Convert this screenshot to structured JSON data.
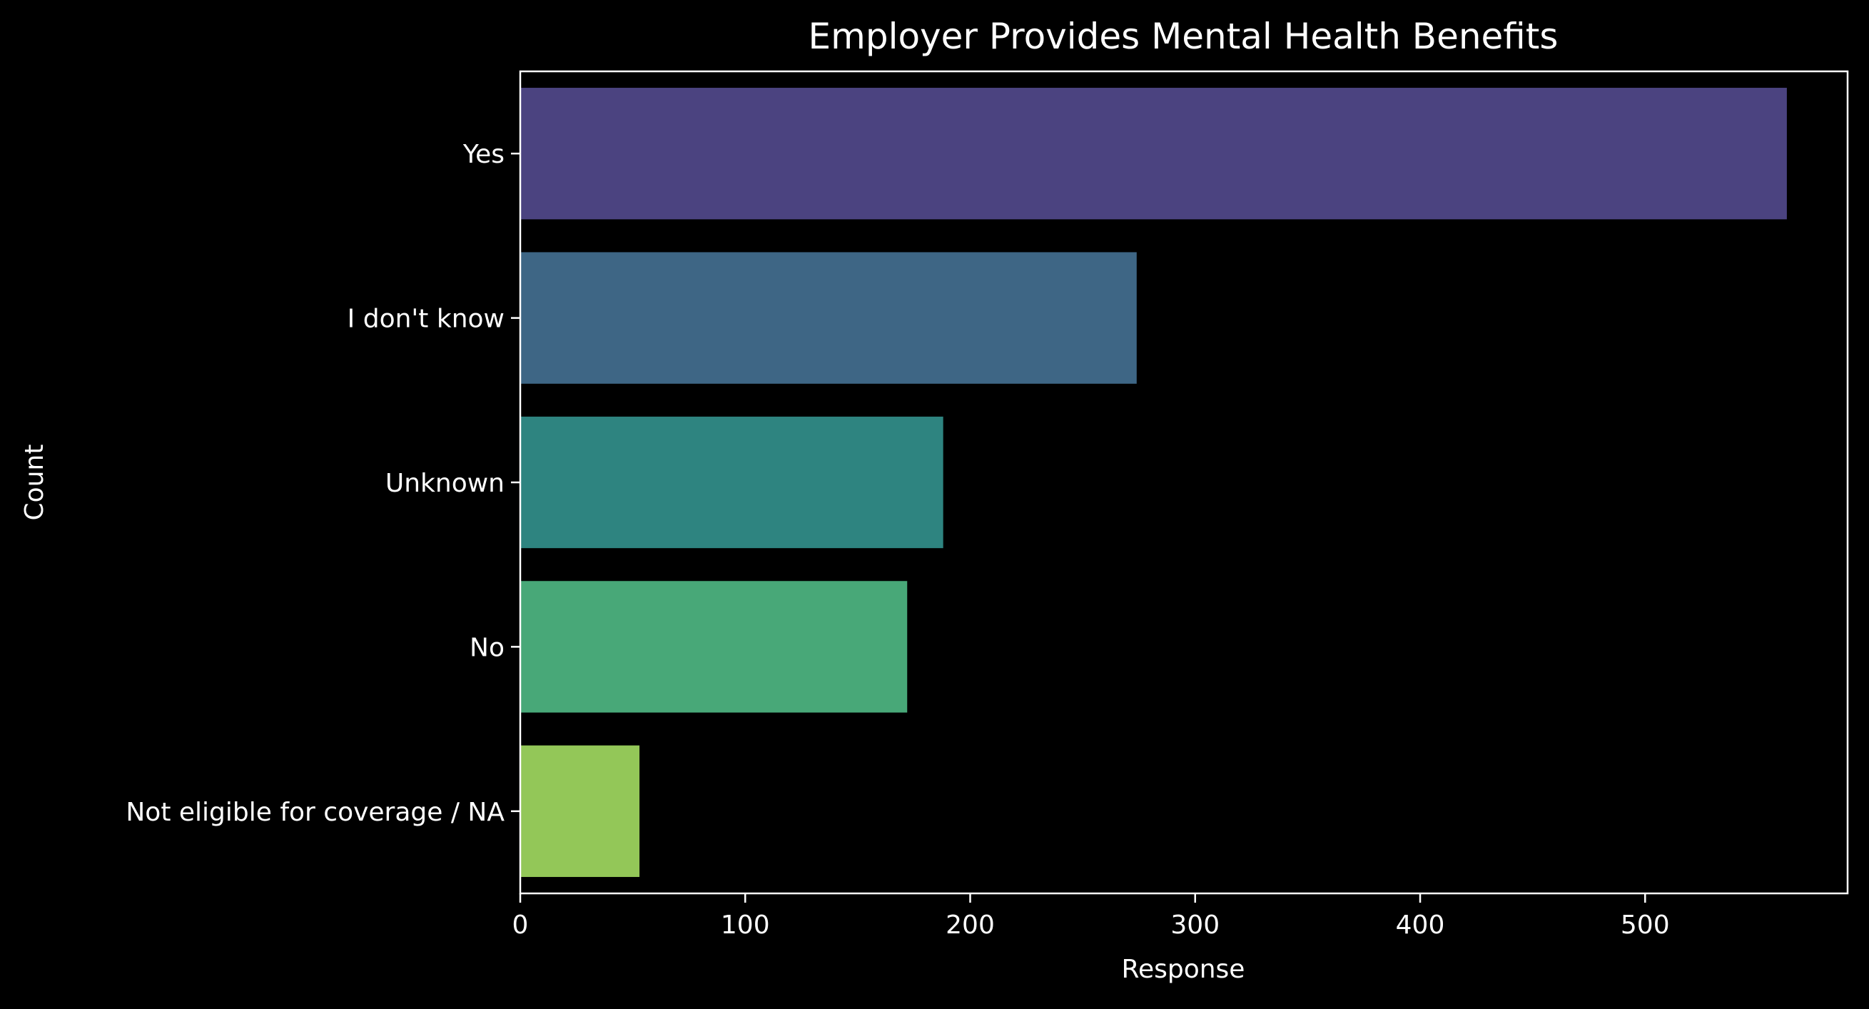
{
  "chart_data": {
    "type": "bar",
    "orientation": "horizontal",
    "title": "Employer Provides Mental Health Benefits",
    "xlabel": "Response",
    "ylabel": "Count",
    "categories": [
      "Yes",
      "I don't know",
      "Unknown",
      "No",
      "Not eligible for coverage / NA"
    ],
    "values": [
      563,
      274,
      188,
      172,
      53
    ],
    "colors": [
      "#4b4380",
      "#3e6685",
      "#2e8480",
      "#48a878",
      "#93c758"
    ],
    "xlim": [
      0,
      590
    ],
    "xticks": [
      0,
      100,
      200,
      300,
      400,
      500
    ],
    "xtick_labels": [
      "0",
      "100",
      "200",
      "300",
      "400",
      "500"
    ],
    "grid": false,
    "legend": false,
    "background": "#000000",
    "foreground": "#ffffff"
  }
}
